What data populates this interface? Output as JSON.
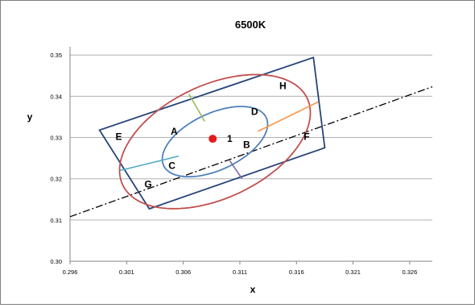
{
  "chart_data": {
    "type": "scatter",
    "title": "6500K",
    "xlabel": "x",
    "ylabel": "y",
    "xlim": [
      0.296,
      0.328
    ],
    "ylim": [
      0.3,
      0.352
    ],
    "x_ticks": [
      "0.296",
      "0.301",
      "0.306",
      "0.311",
      "0.316",
      "0.321",
      "0.326"
    ],
    "y_ticks": [
      "0.30",
      "0.31",
      "0.32",
      "0.33",
      "0.34",
      "0.35"
    ],
    "grid": "horizontal",
    "legend": "none",
    "series": [
      {
        "kind": "point",
        "color": "#e31a1c",
        "points": [
          [
            0.3086,
            0.3297
          ]
        ]
      },
      {
        "kind": "line",
        "style": "dash-dot",
        "color": "#000000",
        "points": [
          [
            0.296,
            0.3108
          ],
          [
            0.328,
            0.3423
          ]
        ]
      },
      {
        "kind": "quadrangle",
        "color": "#264478",
        "points": [
          [
            0.2986,
            0.3318
          ],
          [
            0.3175,
            0.3494
          ],
          [
            0.3185,
            0.3275
          ],
          [
            0.303,
            0.3127
          ]
        ]
      },
      {
        "kind": "ellipse",
        "color": "#c0504d",
        "center": [
          0.3088,
          0.329
        ],
        "semi_axis_major": 0.009,
        "semi_axis_minor": 0.005,
        "tilt_deg": 25
      },
      {
        "kind": "ellipse",
        "color": "#4f81bd",
        "center": [
          0.3088,
          0.329
        ],
        "semi_axis_major": 0.005,
        "semi_axis_minor": 0.0025,
        "tilt_deg": 25
      },
      {
        "kind": "segment",
        "color": "#9bbb59",
        "points": [
          [
            0.3065,
            0.3405
          ],
          [
            0.3079,
            0.3339
          ]
        ]
      },
      {
        "kind": "segment",
        "color": "#f79646",
        "points": [
          [
            0.3126,
            0.3315
          ],
          [
            0.3179,
            0.3386
          ]
        ]
      },
      {
        "kind": "segment",
        "color": "#8064a2",
        "points": [
          [
            0.3101,
            0.3244
          ],
          [
            0.3112,
            0.32
          ]
        ]
      },
      {
        "kind": "segment",
        "color": "#4bacc6",
        "points": [
          [
            0.3004,
            0.322
          ],
          [
            0.3056,
            0.3255
          ]
        ]
      }
    ],
    "annotations": [
      {
        "text": "1",
        "x": 0.3101,
        "y": 0.3297
      },
      {
        "text": "A",
        "x": 0.3052,
        "y": 0.3315
      },
      {
        "text": "B",
        "x": 0.3116,
        "y": 0.3282
      },
      {
        "text": "C",
        "x": 0.305,
        "y": 0.3232
      },
      {
        "text": "D",
        "x": 0.3123,
        "y": 0.3363
      },
      {
        "text": "E",
        "x": 0.3003,
        "y": 0.3302
      },
      {
        "text": "F",
        "x": 0.3169,
        "y": 0.3302
      },
      {
        "text": "G",
        "x": 0.3029,
        "y": 0.3187
      },
      {
        "text": "H",
        "x": 0.3148,
        "y": 0.3425
      }
    ]
  }
}
